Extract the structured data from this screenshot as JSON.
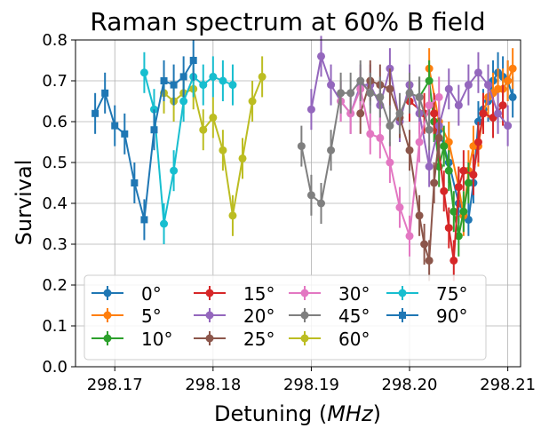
{
  "chart_data": {
    "type": "scatter",
    "title": "Raman spectrum at 60% B field",
    "xlabel_prefix": "Detuning (",
    "xlabel_unit": "MHz",
    "xlabel_suffix": ")",
    "ylabel": "Survival",
    "xlim": [
      298.166,
      298.2113
    ],
    "ylim": [
      0.0,
      0.8
    ],
    "xticks": [
      298.17,
      298.18,
      298.19,
      298.2,
      298.21
    ],
    "xtick_labels": [
      "298.17",
      "298.18",
      "298.19",
      "298.20",
      "298.21"
    ],
    "yticks": [
      0.0,
      0.1,
      0.2,
      0.3,
      0.4,
      0.5,
      0.6,
      0.7,
      0.8
    ],
    "ytick_labels": [
      "0.0",
      "0.1",
      "0.2",
      "0.3",
      "0.4",
      "0.5",
      "0.6",
      "0.7",
      "0.8"
    ],
    "grid": true,
    "legend_position": "lower-left",
    "legend_columns": 4,
    "series": [
      {
        "name": "0",
        "color": "#1f77b4",
        "marker": "circle",
        "x": [
          298.203,
          298.204,
          298.205,
          298.206,
          298.2065,
          298.207,
          298.2075,
          298.208,
          298.2085,
          298.209,
          298.2095,
          298.21,
          298.2105
        ],
        "y": [
          0.58,
          0.5,
          0.4,
          0.36,
          0.45,
          0.6,
          0.63,
          0.65,
          0.7,
          0.72,
          0.71,
          0.7,
          0.66
        ],
        "err": [
          0.05,
          0.05,
          0.05,
          0.04,
          0.05,
          0.05,
          0.05,
          0.05,
          0.05,
          0.05,
          0.05,
          0.05,
          0.05
        ]
      },
      {
        "name": "5",
        "color": "#ff7f0e",
        "marker": "circle",
        "x": [
          298.202,
          298.203,
          298.204,
          298.205,
          298.2055,
          298.206,
          298.2065,
          298.207,
          298.2075,
          298.208,
          298.2085,
          298.209,
          298.2095,
          298.21,
          298.2105
        ],
        "y": [
          0.73,
          0.6,
          0.55,
          0.44,
          0.37,
          0.48,
          0.54,
          0.54,
          0.62,
          0.66,
          0.67,
          0.68,
          0.68,
          0.7,
          0.73
        ],
        "err": [
          0.05,
          0.05,
          0.05,
          0.05,
          0.05,
          0.05,
          0.05,
          0.05,
          0.05,
          0.05,
          0.05,
          0.05,
          0.05,
          0.05,
          0.05
        ]
      },
      {
        "name": "10",
        "color": "#2ca02c",
        "marker": "circle",
        "x": [
          298.201,
          298.202,
          298.2025,
          298.203,
          298.2035,
          298.204,
          298.2045,
          298.205,
          298.2055,
          298.206
        ],
        "y": [
          0.66,
          0.7,
          0.6,
          0.49,
          0.54,
          0.48,
          0.38,
          0.32,
          0.38,
          0.45
        ],
        "err": [
          0.05,
          0.05,
          0.05,
          0.05,
          0.05,
          0.05,
          0.05,
          0.05,
          0.05,
          0.05
        ]
      },
      {
        "name": "15",
        "color": "#d62728",
        "marker": "circle",
        "x": [
          298.2,
          298.2015,
          298.2025,
          298.2035,
          298.204,
          298.2045,
          298.205,
          298.2055,
          298.2065,
          298.207,
          298.2075,
          298.2085,
          298.2095
        ],
        "y": [
          0.65,
          0.62,
          0.62,
          0.43,
          0.34,
          0.26,
          0.44,
          0.48,
          0.47,
          0.55,
          0.62,
          0.61,
          0.64
        ],
        "err": [
          0.05,
          0.05,
          0.05,
          0.05,
          0.05,
          0.05,
          0.05,
          0.05,
          0.05,
          0.05,
          0.05,
          0.05,
          0.05
        ]
      },
      {
        "name": "20",
        "color": "#9467bd",
        "marker": "circle",
        "x": [
          298.19,
          298.191,
          298.192,
          298.193,
          298.194,
          298.195,
          298.196,
          298.197,
          298.198,
          298.199,
          298.2,
          298.201,
          298.202,
          298.203,
          298.204,
          298.205,
          298.206,
          298.207,
          298.208,
          298.209,
          298.21
        ],
        "y": [
          0.63,
          0.76,
          0.69,
          0.65,
          0.62,
          0.69,
          0.69,
          0.64,
          0.73,
          0.6,
          0.69,
          0.62,
          0.49,
          0.59,
          0.68,
          0.64,
          0.69,
          0.72,
          0.69,
          0.62,
          0.59
        ],
        "err": [
          0.05,
          0.05,
          0.05,
          0.05,
          0.05,
          0.05,
          0.05,
          0.05,
          0.05,
          0.05,
          0.05,
          0.05,
          0.05,
          0.05,
          0.05,
          0.05,
          0.05,
          0.05,
          0.05,
          0.05,
          0.05
        ]
      },
      {
        "name": "25",
        "color": "#8c564b",
        "marker": "circle",
        "x": [
          298.195,
          298.196,
          298.197,
          298.198,
          298.199,
          298.2,
          298.201,
          298.2015,
          298.202,
          298.2025,
          298.203
        ],
        "y": [
          0.62,
          0.7,
          0.69,
          0.68,
          0.61,
          0.53,
          0.37,
          0.3,
          0.26,
          0.45,
          0.56
        ],
        "err": [
          0.05,
          0.05,
          0.05,
          0.05,
          0.05,
          0.05,
          0.05,
          0.05,
          0.05,
          0.05,
          0.05
        ]
      },
      {
        "name": "30",
        "color": "#e377c2",
        "marker": "circle",
        "x": [
          298.193,
          298.194,
          298.195,
          298.196,
          298.197,
          298.198,
          298.199,
          298.2,
          298.201,
          298.202,
          298.203
        ],
        "y": [
          0.65,
          0.62,
          0.68,
          0.57,
          0.56,
          0.5,
          0.39,
          0.32,
          0.55,
          0.64,
          0.66
        ],
        "err": [
          0.05,
          0.05,
          0.05,
          0.05,
          0.05,
          0.05,
          0.05,
          0.05,
          0.05,
          0.05,
          0.05
        ]
      },
      {
        "name": "45",
        "color": "#7f7f7f",
        "marker": "circle",
        "x": [
          298.189,
          298.19,
          298.191,
          298.192,
          298.193,
          298.194,
          298.195,
          298.196,
          298.197,
          298.198,
          298.199,
          298.2,
          298.201,
          298.202
        ],
        "y": [
          0.54,
          0.42,
          0.4,
          0.53,
          0.67,
          0.67,
          0.7,
          0.67,
          0.66,
          0.59,
          0.62,
          0.67,
          0.66,
          0.58
        ],
        "err": [
          0.05,
          0.05,
          0.05,
          0.05,
          0.05,
          0.05,
          0.05,
          0.05,
          0.05,
          0.05,
          0.05,
          0.05,
          0.05,
          0.05
        ]
      },
      {
        "name": "60",
        "color": "#bcbd22",
        "marker": "circle",
        "x": [
          298.175,
          298.176,
          298.177,
          298.178,
          298.179,
          298.18,
          298.181,
          298.182,
          298.183,
          298.184,
          298.185
        ],
        "y": [
          0.67,
          0.65,
          0.67,
          0.68,
          0.58,
          0.61,
          0.53,
          0.37,
          0.51,
          0.65,
          0.71
        ],
        "err": [
          0.05,
          0.05,
          0.05,
          0.05,
          0.05,
          0.05,
          0.05,
          0.05,
          0.05,
          0.05,
          0.05
        ]
      },
      {
        "name": "75",
        "color": "#17becf",
        "marker": "circle",
        "x": [
          298.173,
          298.174,
          298.175,
          298.176,
          298.177,
          298.178,
          298.179,
          298.18,
          298.181,
          298.182
        ],
        "y": [
          0.72,
          0.63,
          0.35,
          0.48,
          0.65,
          0.71,
          0.69,
          0.71,
          0.7,
          0.69
        ],
        "err": [
          0.05,
          0.05,
          0.05,
          0.05,
          0.05,
          0.05,
          0.05,
          0.05,
          0.05,
          0.05
        ]
      },
      {
        "name": "90",
        "color": "#1f77b4",
        "marker": "square",
        "x": [
          298.168,
          298.169,
          298.17,
          298.171,
          298.172,
          298.173,
          298.174,
          298.175,
          298.176,
          298.177,
          298.178
        ],
        "y": [
          0.62,
          0.67,
          0.59,
          0.57,
          0.45,
          0.36,
          0.58,
          0.7,
          0.69,
          0.71,
          0.75
        ],
        "err": [
          0.05,
          0.05,
          0.05,
          0.05,
          0.05,
          0.05,
          0.05,
          0.05,
          0.05,
          0.05,
          0.05
        ]
      }
    ],
    "legend_degree_symbol": "°"
  }
}
